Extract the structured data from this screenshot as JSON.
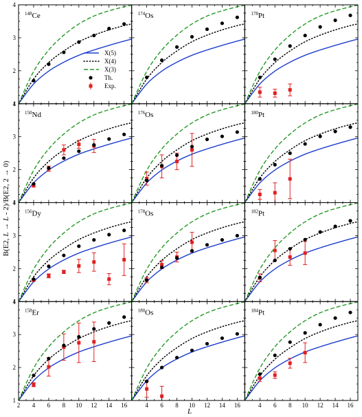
{
  "chart_data": {
    "type": "scatter",
    "layout": "4 rows x 3 columns of panels sharing axes",
    "xlabel": "L",
    "ylabel_parts": {
      "prefix": "B(E2, ",
      "mid1": "L",
      "mid2": " → ",
      "mid3": "L",
      "mid4": " - 2)/B(E2, 2 → 0)"
    },
    "xlim": [
      2,
      17
    ],
    "ylim": [
      1,
      4
    ],
    "xticks": [
      2,
      4,
      6,
      8,
      10,
      12,
      14,
      16
    ],
    "yticks": [
      1,
      2,
      3,
      4
    ],
    "grid": false,
    "legend": {
      "placement": "inside top-left panel, right side",
      "entries": [
        {
          "label": "X(5)",
          "style": "solid",
          "color": "#1f3fcc"
        },
        {
          "label": "X(4)",
          "style": "dotted",
          "color": "#000000"
        },
        {
          "label": "X(3)",
          "style": "dashed",
          "color": "#229922"
        },
        {
          "label": "Th.",
          "style": "circle",
          "color": "#000000"
        },
        {
          "label": "Exp.",
          "style": "square-errorbar",
          "color": "#e02020"
        }
      ]
    },
    "curves": {
      "X(5)": {
        "x": [
          2,
          4,
          6,
          8,
          10,
          12,
          14,
          16,
          17
        ],
        "y": [
          1.0,
          1.6,
          1.99,
          2.26,
          2.47,
          2.63,
          2.77,
          2.9,
          2.96
        ]
      },
      "X(4)": {
        "x": [
          2,
          4,
          6,
          8,
          10,
          12,
          14,
          16,
          17
        ],
        "y": [
          1.0,
          1.75,
          2.25,
          2.6,
          2.88,
          3.08,
          3.24,
          3.37,
          3.42
        ]
      },
      "X(3)": {
        "x": [
          2,
          4,
          6,
          8,
          10,
          12,
          14,
          16,
          17
        ],
        "y": [
          1.0,
          1.98,
          2.63,
          3.08,
          3.42,
          3.66,
          3.82,
          3.94,
          3.99
        ]
      }
    },
    "panels": [
      {
        "mass": "148",
        "element": "Ce",
        "theory": {
          "x": [
            4,
            6,
            8,
            10,
            12,
            14,
            16
          ],
          "y": [
            1.7,
            2.2,
            2.56,
            2.87,
            3.07,
            3.28,
            3.42
          ]
        },
        "experiment": []
      },
      {
        "mass": "174",
        "element": "Os",
        "theory": {
          "x": [
            4,
            6,
            8,
            10,
            12,
            14,
            16
          ],
          "y": [
            1.8,
            2.32,
            2.72,
            3.03,
            3.26,
            3.44,
            3.62
          ]
        },
        "experiment": []
      },
      {
        "mass": "178",
        "element": "Pt",
        "theory": {
          "x": [
            4,
            6,
            8,
            10,
            12,
            14,
            16
          ],
          "y": [
            1.8,
            2.35,
            2.75,
            3.07,
            3.33,
            3.53,
            3.68
          ]
        },
        "experiment": [
          {
            "x": 4,
            "y": 1.35,
            "err": 0.15
          },
          {
            "x": 6,
            "y": 1.32,
            "err": 0.12
          },
          {
            "x": 8,
            "y": 1.42,
            "err": 0.18
          }
        ]
      },
      {
        "mass": "150",
        "element": "Nd",
        "theory": {
          "x": [
            4,
            6,
            8,
            10,
            12,
            14,
            16
          ],
          "y": [
            1.57,
            2.05,
            2.35,
            2.56,
            2.75,
            2.93,
            3.07
          ]
        },
        "experiment": [
          {
            "x": 4,
            "y": 1.52,
            "err": 0.05
          },
          {
            "x": 6,
            "y": 2.03,
            "err": 0.08
          },
          {
            "x": 8,
            "y": 2.6,
            "err": 0.15
          },
          {
            "x": 10,
            "y": 2.77,
            "err": 0.12
          },
          {
            "x": 12,
            "y": 2.72,
            "err": 0.2
          }
        ]
      },
      {
        "mass": "176",
        "element": "Os",
        "theory": {
          "x": [
            4,
            6,
            8,
            10,
            12,
            14,
            16
          ],
          "y": [
            1.67,
            2.12,
            2.44,
            2.7,
            2.92,
            3.01,
            3.14
          ]
        },
        "experiment": [
          {
            "x": 4,
            "y": 1.73,
            "err": 0.2
          },
          {
            "x": 6,
            "y": 2.1,
            "err": 0.35
          },
          {
            "x": 8,
            "y": 2.25,
            "err": 0.25
          },
          {
            "x": 10,
            "y": 2.6,
            "err": 0.5
          }
        ]
      },
      {
        "mass": "180",
        "element": "Pt",
        "theory": {
          "x": [
            4,
            6,
            8,
            10,
            12,
            14,
            16
          ],
          "y": [
            1.72,
            2.15,
            2.5,
            2.78,
            3.01,
            3.16,
            3.29
          ]
        },
        "experiment": [
          {
            "x": 4,
            "y": 1.25,
            "err": 0.15
          },
          {
            "x": 6,
            "y": 1.3,
            "err": 0.3
          },
          {
            "x": 8,
            "y": 1.72,
            "err": 0.6
          }
        ]
      },
      {
        "mass": "156",
        "element": "Dy",
        "theory": {
          "x": [
            4,
            6,
            8,
            10,
            12,
            14,
            16
          ],
          "y": [
            1.68,
            2.07,
            2.4,
            2.68,
            2.87,
            3.03,
            3.16
          ]
        },
        "experiment": [
          {
            "x": 4,
            "y": 1.65,
            "err": 0.03
          },
          {
            "x": 6,
            "y": 1.78,
            "err": 0.06
          },
          {
            "x": 8,
            "y": 1.9,
            "err": 0.05
          },
          {
            "x": 10,
            "y": 2.08,
            "err": 0.2
          },
          {
            "x": 12,
            "y": 2.2,
            "err": 0.28
          },
          {
            "x": 14,
            "y": 1.68,
            "err": 0.17
          },
          {
            "x": 16,
            "y": 2.27,
            "err": 0.48
          }
        ]
      },
      {
        "mass": "178",
        "element": "Os",
        "theory": {
          "x": [
            4,
            6,
            8,
            10,
            12,
            14,
            16
          ],
          "y": [
            1.65,
            2.04,
            2.32,
            2.54,
            2.72,
            2.87,
            3.0
          ]
        },
        "experiment": [
          {
            "x": 4,
            "y": 1.65,
            "err": 0.08
          },
          {
            "x": 6,
            "y": 2.12,
            "err": 0.12
          },
          {
            "x": 8,
            "y": 2.35,
            "err": 0.15
          },
          {
            "x": 10,
            "y": 2.8,
            "err": 0.3
          }
        ]
      },
      {
        "mass": "182",
        "element": "Pt",
        "theory": {
          "x": [
            4,
            6,
            8,
            10,
            12,
            14,
            16
          ],
          "y": [
            1.73,
            2.25,
            2.6,
            2.88,
            3.11,
            3.28,
            3.45
          ]
        },
        "experiment": [
          {
            "x": 4,
            "y": 1.72,
            "err": 0.12
          },
          {
            "x": 6,
            "y": 2.55,
            "err": 0.3
          },
          {
            "x": 8,
            "y": 2.35,
            "err": 0.25
          },
          {
            "x": 10,
            "y": 2.47,
            "err": 0.35
          }
        ]
      },
      {
        "mass": "158",
        "element": "Er",
        "theory": {
          "x": [
            4,
            6,
            8,
            10,
            12,
            14,
            16
          ],
          "y": [
            1.76,
            2.27,
            2.67,
            2.93,
            3.17,
            3.35,
            3.53
          ]
        },
        "experiment": [
          {
            "x": 4,
            "y": 1.48,
            "err": 0.06
          },
          {
            "x": 6,
            "y": 2.02,
            "err": 0.28
          },
          {
            "x": 8,
            "y": 2.62,
            "err": 0.4
          },
          {
            "x": 10,
            "y": 2.75,
            "err": 0.6
          },
          {
            "x": 12,
            "y": 2.78,
            "err": 0.6
          }
        ]
      },
      {
        "mass": "180",
        "element": "Os",
        "theory": {
          "x": [
            4,
            6,
            8,
            10,
            12,
            14,
            16
          ],
          "y": [
            1.58,
            2.0,
            2.3,
            2.52,
            2.72,
            2.89,
            3.02
          ]
        },
        "experiment": [
          {
            "x": 4,
            "y": 1.35,
            "err": 0.25
          },
          {
            "x": 6,
            "y": 1.13,
            "err": 0.3
          }
        ]
      },
      {
        "mass": "184",
        "element": "Pt",
        "theory": {
          "x": [
            4,
            6,
            8,
            10,
            12,
            14,
            16
          ],
          "y": [
            1.8,
            2.37,
            2.77,
            3.05,
            3.3,
            3.5,
            3.67
          ]
        },
        "experiment": [
          {
            "x": 4,
            "y": 1.68,
            "err": 0.1
          },
          {
            "x": 6,
            "y": 1.77,
            "err": 0.1
          },
          {
            "x": 8,
            "y": 2.13,
            "err": 0.15
          },
          {
            "x": 10,
            "y": 2.45,
            "err": 0.3
          }
        ]
      }
    ]
  }
}
